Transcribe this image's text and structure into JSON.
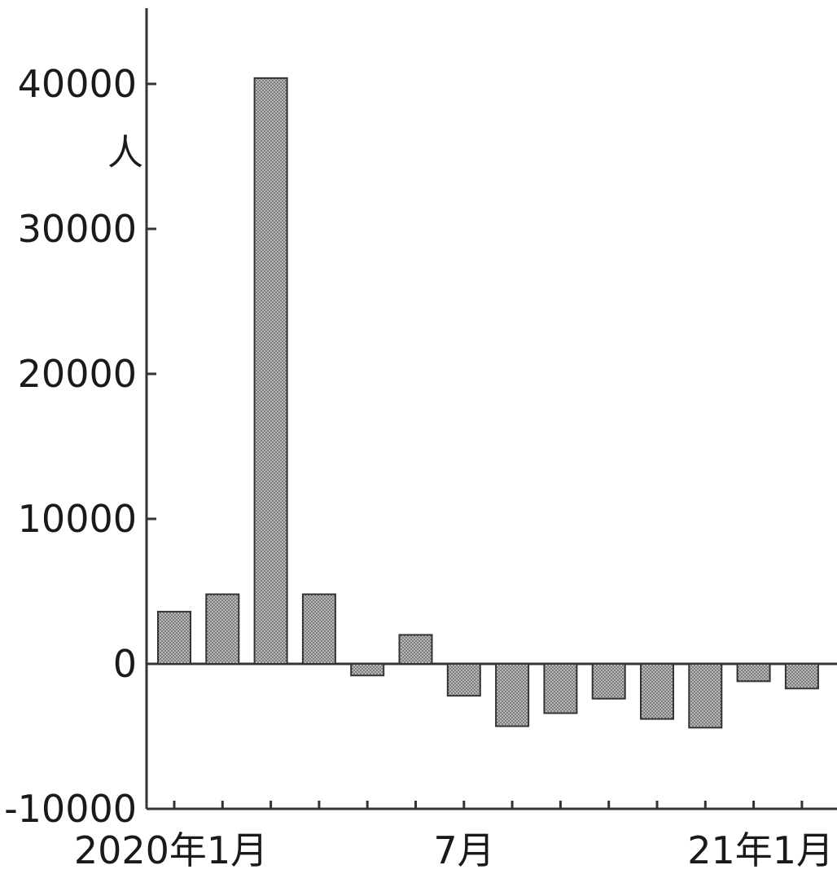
{
  "chart_data": {
    "type": "bar",
    "ylabel": "人",
    "ylim": [
      -10000,
      46000
    ],
    "yticks": [
      40000,
      30000,
      20000,
      10000,
      0,
      -10000
    ],
    "categories": [
      "2020-01",
      "2020-02",
      "2020-03",
      "2020-04",
      "2020-05",
      "2020-06",
      "2020-07",
      "2020-08",
      "2020-09",
      "2020-10",
      "2020-11",
      "2020-12",
      "2021-01",
      "2021-02"
    ],
    "xlabels": [
      {
        "category": "2020-01",
        "text": "2020年1月"
      },
      {
        "category": "2020-07",
        "text": "7月"
      },
      {
        "category": "2021-01",
        "text": "21年1月"
      }
    ],
    "values": [
      3600,
      4800,
      40400,
      4800,
      -800,
      2000,
      -2200,
      -4300,
      -3400,
      -2400,
      -3800,
      -4400,
      -1200,
      -1700
    ],
    "grid": false,
    "colors": {
      "bar": "#9a9a9a",
      "axis": "#333333"
    }
  }
}
